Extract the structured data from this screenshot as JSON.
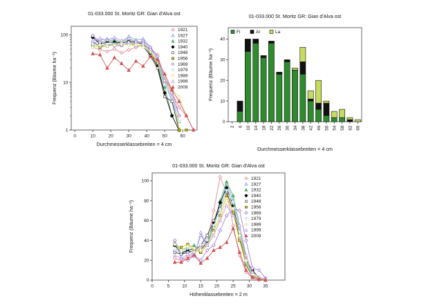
{
  "figure": {
    "background": "#ffffff"
  },
  "chart_data": [
    {
      "id": "diameter-frequency-log",
      "type": "line",
      "title": "01-033.000 St. Moritz GR: Gian d'Alva ost",
      "xlabel": "Durchmesserklassebreiten =  4 cm",
      "ylabel": "Frequenz (Bäume ha⁻¹)",
      "y_scale": "log",
      "xlim": [
        -2,
        68
      ],
      "ylim": [
        1,
        151
      ],
      "x_ticks": [
        0,
        10,
        20,
        30,
        40,
        50,
        60
      ],
      "y_ticks": [
        1,
        10,
        100
      ],
      "grid": false,
      "legend_position": "top-right-inside",
      "x": [
        10,
        14,
        18,
        22,
        26,
        30,
        34,
        38,
        42,
        46,
        50,
        54,
        58,
        62,
        66
      ],
      "series": [
        {
          "name": "1921",
          "color": "#e0808e",
          "marker": "diamond",
          "filled": false,
          "values": [
            55,
            48,
            45,
            50,
            42,
            48,
            55,
            60,
            50,
            38,
            12,
            6,
            3,
            2,
            1
          ]
        },
        {
          "name": "1927",
          "color": "#7d9ede",
          "marker": "triangle",
          "filled": false,
          "values": [
            65,
            78,
            82,
            80,
            72,
            92,
            78,
            82,
            55,
            30,
            10,
            4,
            1.5,
            null,
            null
          ]
        },
        {
          "name": "1932",
          "color": "#4fae62",
          "marker": "triangle",
          "filled": true,
          "values": [
            95,
            68,
            78,
            74,
            70,
            80,
            72,
            70,
            45,
            25,
            8,
            2,
            1,
            null,
            null
          ]
        },
        {
          "name": "1940",
          "color": "#000000",
          "marker": "diamond",
          "filled": true,
          "values": [
            88,
            64,
            70,
            70,
            68,
            72,
            70,
            64,
            40,
            22,
            6,
            2,
            1,
            null,
            null
          ]
        },
        {
          "name": "1948",
          "color": "#222222",
          "marker": "square",
          "filled": false,
          "values": [
            70,
            58,
            60,
            66,
            64,
            66,
            62,
            58,
            36,
            20,
            5,
            4,
            1,
            null,
            null
          ]
        },
        {
          "name": "1956",
          "color": "#e2cf00",
          "marker": "square",
          "filled": true,
          "values": [
            60,
            54,
            58,
            64,
            60,
            66,
            60,
            62,
            42,
            25,
            10,
            7,
            1,
            1,
            null
          ]
        },
        {
          "name": "1969",
          "color": "#9c79d6",
          "marker": "diamond",
          "filled": false,
          "values": [
            96,
            70,
            62,
            58,
            60,
            70,
            66,
            74,
            55,
            35,
            12,
            7,
            2,
            null,
            null
          ]
        },
        {
          "name": "1979",
          "color": "#b5e0ef",
          "marker": "triangle-down",
          "filled": false,
          "values": [
            62,
            58,
            64,
            62,
            66,
            62,
            58,
            60,
            44,
            28,
            9,
            5,
            1.5,
            null,
            null
          ]
        },
        {
          "name": "1989",
          "color": "#e4df8e",
          "marker": "diamond",
          "filled": false,
          "values": [
            55,
            62,
            58,
            60,
            64,
            60,
            62,
            55,
            46,
            30,
            14,
            7,
            5,
            2,
            null
          ]
        },
        {
          "name": "1999",
          "color": "#c09ae2",
          "marker": "triangle",
          "filled": false,
          "values": [
            75,
            85,
            78,
            88,
            76,
            84,
            72,
            68,
            50,
            32,
            11,
            5,
            2,
            null,
            null
          ]
        },
        {
          "name": "2009",
          "color": "#cf4f4f",
          "marker": "triangle",
          "filled": true,
          "values": [
            40,
            38,
            20,
            33,
            25,
            18,
            28,
            22,
            35,
            30,
            15,
            7,
            4,
            2,
            1
          ]
        }
      ]
    },
    {
      "id": "diameter-frequency-species",
      "type": "stacked_bar",
      "title": "01-033.000 St. Moritz GR: Gian d'Alva ost",
      "xlabel": "Durchmesserklassebreiten =  4 cm",
      "ylabel": "Frequenz (Bäume ha⁻¹)",
      "y_scale": "linear",
      "ylim": [
        0,
        45.5
      ],
      "y_ticks": [
        0,
        10,
        20,
        30,
        40
      ],
      "grid": false,
      "legend_position": "top-left-inside",
      "categories": [
        "2",
        "6",
        "10",
        "14",
        "18",
        "22",
        "26",
        "30",
        "34",
        "38",
        "42",
        "46",
        "50",
        "54",
        "58",
        "62",
        "66"
      ],
      "series": [
        {
          "name": "Fi",
          "color": "#2e8b2e",
          "values": [
            0,
            5,
            34,
            38,
            31,
            38,
            23,
            29,
            25,
            23,
            10,
            6,
            3,
            2,
            2,
            0,
            0
          ]
        },
        {
          "name": "Ar",
          "color": "#111111",
          "values": [
            0,
            5,
            6,
            2,
            1,
            1,
            1,
            1,
            0,
            6,
            1,
            3,
            6,
            0,
            0,
            1,
            0
          ]
        },
        {
          "name": "La",
          "color": "#c6dc60",
          "values": [
            0,
            0,
            0,
            0,
            0,
            0,
            0,
            0,
            1,
            7,
            4,
            11,
            1,
            3,
            4,
            1,
            1
          ]
        }
      ]
    },
    {
      "id": "height-frequency",
      "type": "line",
      "title": "01-033.000 St. Moritz GR: Gian d'Alva ost",
      "xlabel": "Höhenklassebreiten =  2 m",
      "ylabel": "Frequenz (Bäume ha⁻¹)",
      "y_scale": "linear",
      "xlim": [
        0,
        41
      ],
      "ylim": [
        0,
        108
      ],
      "x_ticks": [
        0,
        5,
        10,
        15,
        20,
        25,
        30,
        35
      ],
      "y_ticks": [
        0,
        20,
        40,
        60,
        80,
        100
      ],
      "grid": false,
      "legend_position": "top-right-inside",
      "x": [
        7,
        9,
        11,
        13,
        15,
        17,
        19,
        21,
        23,
        25,
        27,
        29,
        31,
        33,
        35
      ],
      "series": [
        {
          "name": "1921",
          "color": "#e0808e",
          "marker": "diamond",
          "filled": false,
          "values": [
            22,
            20,
            24,
            28,
            32,
            40,
            70,
            104,
            88,
            55,
            25,
            8,
            2,
            0,
            null
          ]
        },
        {
          "name": "1927",
          "color": "#7d9ede",
          "marker": "triangle",
          "filled": false,
          "values": [
            35,
            28,
            30,
            25,
            45,
            35,
            55,
            75,
            97,
            80,
            50,
            20,
            5,
            1,
            0
          ]
        },
        {
          "name": "1932",
          "color": "#4fae62",
          "marker": "triangle",
          "filled": true,
          "values": [
            38,
            30,
            33,
            35,
            28,
            35,
            55,
            80,
            99,
            85,
            55,
            22,
            6,
            1,
            0
          ]
        },
        {
          "name": "1940",
          "color": "#000000",
          "marker": "diamond",
          "filled": true,
          "values": [
            35,
            27,
            30,
            32,
            30,
            38,
            58,
            78,
            93,
            75,
            45,
            18,
            10,
            2,
            0
          ]
        },
        {
          "name": "1948",
          "color": "#222222",
          "marker": "square",
          "filled": false,
          "values": [
            28,
            26,
            28,
            30,
            35,
            45,
            60,
            72,
            89,
            70,
            42,
            15,
            4,
            1,
            0
          ]
        },
        {
          "name": "1956",
          "color": "#e2cf00",
          "marker": "square",
          "filled": true,
          "values": [
            30,
            33,
            36,
            30,
            28,
            35,
            50,
            65,
            85,
            68,
            40,
            16,
            5,
            1,
            1
          ]
        },
        {
          "name": "1969",
          "color": "#9c79d6",
          "marker": "diamond",
          "filled": false,
          "values": [
            40,
            22,
            20,
            25,
            20,
            30,
            35,
            50,
            65,
            72,
            70,
            40,
            12,
            10,
            2
          ]
        },
        {
          "name": "1979",
          "color": "#b5e0ef",
          "marker": "triangle-down",
          "filled": false,
          "values": [
            30,
            28,
            32,
            28,
            35,
            40,
            55,
            70,
            90,
            78,
            48,
            18,
            4,
            1,
            0
          ]
        },
        {
          "name": "1989",
          "color": "#e4df8e",
          "marker": "diamond",
          "filled": false,
          "values": [
            36,
            30,
            34,
            32,
            30,
            36,
            48,
            62,
            80,
            72,
            45,
            20,
            6,
            2,
            0
          ]
        },
        {
          "name": "1999",
          "color": "#c09ae2",
          "marker": "triangle",
          "filled": false,
          "values": [
            25,
            22,
            26,
            24,
            48,
            35,
            45,
            60,
            75,
            65,
            55,
            25,
            8,
            3,
            1
          ]
        },
        {
          "name": "2009",
          "color": "#cf4f4f",
          "marker": "triangle",
          "filled": true,
          "values": [
            18,
            18,
            22,
            25,
            17,
            22,
            30,
            33,
            38,
            52,
            28,
            10,
            3,
            1,
            0
          ]
        }
      ]
    }
  ]
}
